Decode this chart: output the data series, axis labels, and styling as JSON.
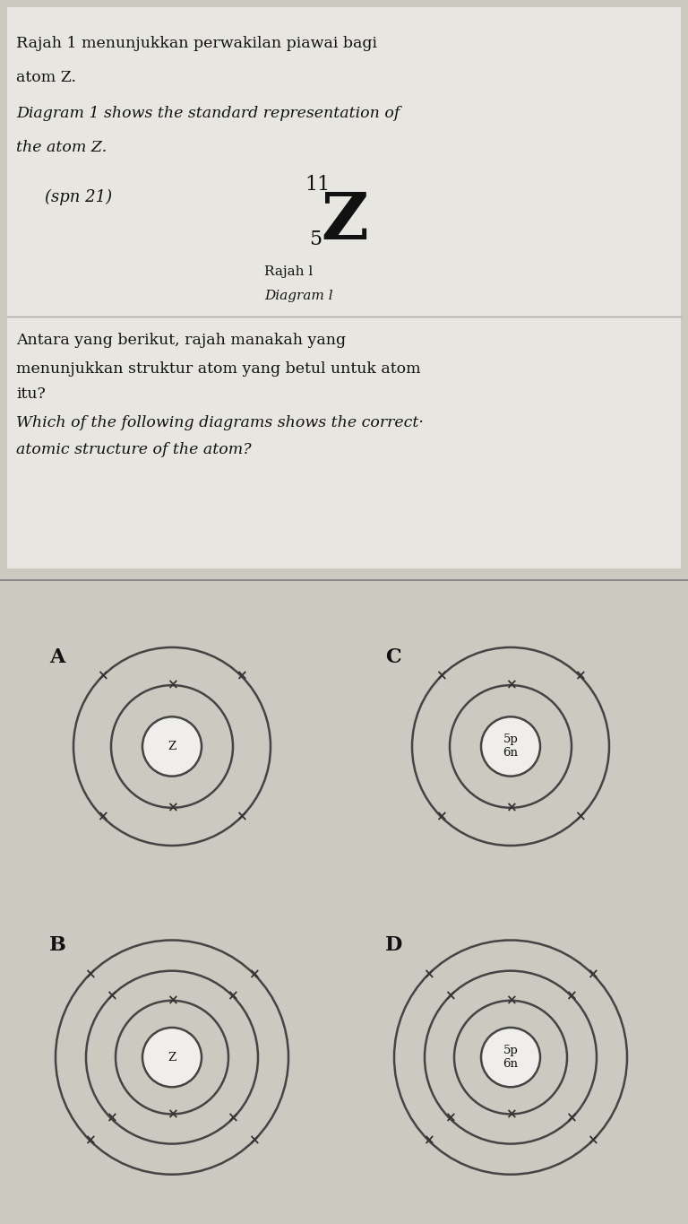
{
  "page_bg": "#ccc9c0",
  "text_section_bg": "#dddbd3",
  "diagram_section_bg": "#ccc9c0",
  "white_box_bg": "#e8e6e0",
  "font_color": "#111111",
  "line_color": "#444444",
  "electron_color": "#333333",
  "nucleus_bg": "#f0eeea",
  "title_lines": [
    [
      "Rajah 1 menunjukkan perwakilan piawai bagi",
      false
    ],
    [
      "atom Z.",
      false
    ],
    [
      "Diagram 1 shows the standard representation of",
      true
    ],
    [
      "the atom Z.",
      true
    ]
  ],
  "handwritten_text": "(spn 21)",
  "mass_number": "11",
  "element_symbol": "Z",
  "atomic_number": "5",
  "diagram_label1": "Rajah l",
  "diagram_label2": "Diagram l",
  "question_lines": [
    [
      "Antara yang berikut, rajah manakah yang",
      false
    ],
    [
      "menunjukkan struktur atom yang betul untuk atom",
      false
    ],
    [
      "itu?",
      false
    ],
    [
      "Which of the following diagrams shows the correct·",
      true
    ],
    [
      "atomic structure of the atom?",
      true
    ]
  ],
  "atom_configs": {
    "A": {
      "nucleus_text": "Z",
      "num_shells": 2,
      "electrons_per_shell": [
        2,
        4
      ],
      "radii": [
        33,
        68,
        110
      ]
    },
    "C": {
      "nucleus_text": "5p\n6n",
      "num_shells": 2,
      "electrons_per_shell": [
        2,
        4
      ],
      "radii": [
        33,
        68,
        110
      ]
    },
    "B": {
      "nucleus_text": "Z",
      "num_shells": 3,
      "electrons_per_shell": [
        2,
        4,
        4
      ],
      "radii": [
        33,
        63,
        96,
        130
      ]
    },
    "D": {
      "nucleus_text": "5p\n6n",
      "num_shells": 3,
      "electrons_per_shell": [
        2,
        4,
        4
      ],
      "radii": [
        33,
        63,
        96,
        130
      ]
    }
  },
  "electron_angles": {
    "2": [
      90,
      270
    ],
    "4": [
      0,
      90,
      180,
      270
    ],
    "4b": [
      45,
      135,
      225,
      315
    ]
  }
}
